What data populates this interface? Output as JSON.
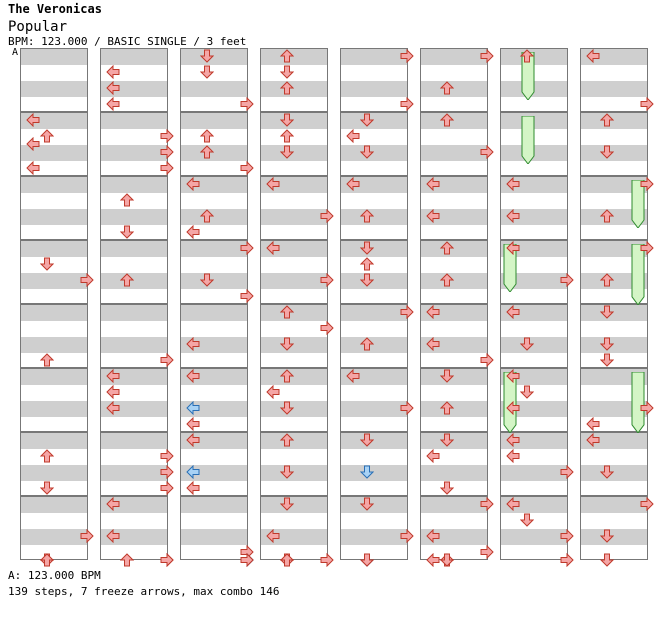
{
  "header": {
    "artist": "The Veronicas",
    "song": "Popular",
    "meta": "BPM: 123.000 / BASIC SINGLE / 3 feet",
    "bpm_marker": "A"
  },
  "footer": {
    "bpm_line": "A: 123.000 BPM",
    "stats_line": "139 steps, 7 freeze arrows, max combo 146"
  },
  "colors": {
    "note_red": "#f5a6a6",
    "note_red_stroke": "#c0392b",
    "note_blue": "#a8d2f5",
    "note_blue_stroke": "#2a6fb5",
    "freeze_fill": "#d4f5c6",
    "freeze_stroke": "#2e8b2e",
    "grid_stripe": "#cfcfcf",
    "grid_border": "#777777",
    "bpm_marker": "#4c9ee0"
  },
  "chart": {
    "columns": 8,
    "measures_per_column": 8,
    "notes": [
      [
        [
          1,
          0.12,
          "L"
        ],
        [
          1,
          0.5,
          "L"
        ],
        [
          1,
          0.88,
          "L"
        ],
        [
          1,
          0.38,
          "U"
        ],
        [
          3,
          0.38,
          "D"
        ],
        [
          3,
          0.62,
          "R"
        ],
        [
          4,
          0.88,
          "U"
        ],
        [
          6,
          0.38,
          "U"
        ],
        [
          6,
          0.88,
          "D"
        ],
        [
          7,
          0.62,
          "R"
        ],
        [
          8,
          0.38,
          "D"
        ],
        [
          8,
          0.88,
          "U"
        ]
      ],
      [
        [
          0,
          0.38,
          "L"
        ],
        [
          0,
          0.62,
          "L"
        ],
        [
          0,
          0.88,
          "L"
        ],
        [
          1,
          0.38,
          "R"
        ],
        [
          1,
          0.62,
          "R"
        ],
        [
          1,
          0.88,
          "R"
        ],
        [
          2,
          0.38,
          "U"
        ],
        [
          2,
          0.88,
          "D"
        ],
        [
          3,
          0.62,
          "U"
        ],
        [
          4,
          0.88,
          "R"
        ],
        [
          5,
          0.12,
          "L"
        ],
        [
          5,
          0.38,
          "L"
        ],
        [
          5,
          0.62,
          "L"
        ],
        [
          6,
          0.38,
          "R"
        ],
        [
          6,
          0.62,
          "R"
        ],
        [
          6,
          0.88,
          "R"
        ],
        [
          7,
          0.12,
          "L"
        ],
        [
          7,
          0.62,
          "L"
        ],
        [
          8,
          0.38,
          "R"
        ],
        [
          8,
          0.62,
          "U"
        ],
        [
          8,
          0.88,
          "R"
        ]
      ],
      [
        [
          0,
          0.12,
          "D"
        ],
        [
          0,
          0.38,
          "D"
        ],
        [
          0,
          0.88,
          "R"
        ],
        [
          1,
          0.38,
          "U"
        ],
        [
          1,
          0.62,
          "U"
        ],
        [
          1,
          0.88,
          "R"
        ],
        [
          2,
          0.12,
          "L"
        ],
        [
          2,
          0.62,
          "U"
        ],
        [
          2,
          0.88,
          "L"
        ],
        [
          3,
          0.12,
          "R"
        ],
        [
          3,
          0.62,
          "D"
        ],
        [
          3,
          0.88,
          "R"
        ],
        [
          4,
          0.62,
          "L"
        ],
        [
          5,
          0.12,
          "L"
        ],
        [
          5,
          0.62,
          "LB"
        ],
        [
          5,
          0.88,
          "L"
        ],
        [
          6,
          0.12,
          "L"
        ],
        [
          6,
          0.62,
          "LB"
        ],
        [
          6,
          0.88,
          "L"
        ],
        [
          7,
          0.88,
          "R"
        ],
        [
          8,
          0.38,
          "RB"
        ],
        [
          8,
          0.12,
          "R"
        ],
        [
          8,
          0.88,
          "RB"
        ],
        [
          8,
          0.88,
          "R"
        ]
      ],
      [
        [
          0,
          0.12,
          "U"
        ],
        [
          0,
          0.38,
          "D"
        ],
        [
          0,
          0.62,
          "U"
        ],
        [
          1,
          0.12,
          "D"
        ],
        [
          1,
          0.38,
          "U"
        ],
        [
          1,
          0.62,
          "D"
        ],
        [
          2,
          0.12,
          "L"
        ],
        [
          2,
          0.62,
          "R"
        ],
        [
          3,
          0.12,
          "L"
        ],
        [
          3,
          0.62,
          "R"
        ],
        [
          4,
          0.12,
          "U"
        ],
        [
          4,
          0.38,
          "R"
        ],
        [
          4,
          0.62,
          "D"
        ],
        [
          5,
          0.12,
          "U"
        ],
        [
          5,
          0.38,
          "L"
        ],
        [
          5,
          0.62,
          "D"
        ],
        [
          6,
          0.12,
          "U"
        ],
        [
          6,
          0.62,
          "D"
        ],
        [
          7,
          0.12,
          "D"
        ],
        [
          7,
          0.62,
          "L"
        ],
        [
          8,
          0.12,
          "D"
        ],
        [
          8,
          0.62,
          "U"
        ],
        [
          8,
          0.88,
          "R"
        ]
      ],
      [
        [
          0,
          0.12,
          "R"
        ],
        [
          0,
          0.88,
          "R"
        ],
        [
          1,
          0.12,
          "D"
        ],
        [
          1,
          0.38,
          "L"
        ],
        [
          1,
          0.62,
          "D"
        ],
        [
          2,
          0.12,
          "L"
        ],
        [
          2,
          0.62,
          "U"
        ],
        [
          3,
          0.12,
          "D"
        ],
        [
          3,
          0.38,
          "U"
        ],
        [
          3,
          0.62,
          "D"
        ],
        [
          4,
          0.12,
          "R"
        ],
        [
          4,
          0.62,
          "U"
        ],
        [
          5,
          0.12,
          "L"
        ],
        [
          5,
          0.62,
          "R"
        ],
        [
          6,
          0.12,
          "D"
        ],
        [
          6,
          0.62,
          "DB"
        ],
        [
          7,
          0.12,
          "D"
        ],
        [
          7,
          0.62,
          "R"
        ],
        [
          8,
          0.12,
          "D"
        ],
        [
          8,
          0.62,
          "DB"
        ],
        [
          8,
          0.88,
          "D"
        ]
      ],
      [
        [
          0,
          0.12,
          "R"
        ],
        [
          0,
          0.62,
          "U"
        ],
        [
          1,
          0.12,
          "U"
        ],
        [
          1,
          0.62,
          "R"
        ],
        [
          2,
          0.12,
          "L"
        ],
        [
          2,
          0.62,
          "L"
        ],
        [
          3,
          0.12,
          "U"
        ],
        [
          3,
          0.62,
          "U"
        ],
        [
          4,
          0.12,
          "L"
        ],
        [
          4,
          0.62,
          "L"
        ],
        [
          4,
          0.88,
          "R"
        ],
        [
          5,
          0.12,
          "D"
        ],
        [
          5,
          0.62,
          "U"
        ],
        [
          6,
          0.12,
          "D"
        ],
        [
          6,
          0.38,
          "L"
        ],
        [
          6,
          0.88,
          "D"
        ],
        [
          7,
          0.12,
          "R"
        ],
        [
          7,
          0.62,
          "L"
        ],
        [
          7,
          0.88,
          "R"
        ],
        [
          8,
          0.38,
          "U"
        ],
        [
          8,
          0.62,
          "D"
        ],
        [
          8,
          0.88,
          "L"
        ]
      ],
      [
        [
          0,
          0.12,
          "U"
        ],
        [
          2,
          0.12,
          "L"
        ],
        [
          2,
          0.62,
          "L"
        ],
        [
          3,
          0.12,
          "L"
        ],
        [
          3,
          0.62,
          "R"
        ],
        [
          4,
          0.12,
          "L"
        ],
        [
          4,
          0.62,
          "D"
        ],
        [
          5,
          0.12,
          "L"
        ],
        [
          5,
          0.38,
          "D"
        ],
        [
          5,
          0.62,
          "L"
        ],
        [
          6,
          0.12,
          "L"
        ],
        [
          6,
          0.38,
          "L"
        ],
        [
          6,
          0.62,
          "R"
        ],
        [
          7,
          0.12,
          "L"
        ],
        [
          7,
          0.38,
          "D"
        ],
        [
          7,
          0.62,
          "R"
        ],
        [
          8,
          0.12,
          "R"
        ]
      ],
      [
        [
          0,
          0.12,
          "L"
        ],
        [
          0,
          0.88,
          "R"
        ],
        [
          1,
          0.12,
          "U"
        ],
        [
          1,
          0.62,
          "D"
        ],
        [
          2,
          0.12,
          "R"
        ],
        [
          2,
          0.62,
          "U"
        ],
        [
          3,
          0.12,
          "R"
        ],
        [
          3,
          0.62,
          "U"
        ],
        [
          4,
          0.12,
          "D"
        ],
        [
          4,
          0.62,
          "D"
        ],
        [
          4,
          0.88,
          "D"
        ],
        [
          5,
          0.62,
          "R"
        ],
        [
          5,
          0.88,
          "L"
        ],
        [
          6,
          0.12,
          "L"
        ],
        [
          6,
          0.62,
          "D"
        ],
        [
          7,
          0.12,
          "R"
        ],
        [
          7,
          0.62,
          "D"
        ],
        [
          8,
          0.12,
          "D"
        ]
      ]
    ],
    "freezes": [
      [
        6,
        0.0,
        0.75
      ],
      [
        6,
        1.0,
        1.75
      ],
      [
        6,
        3.0,
        3.75
      ],
      [
        6,
        5.0,
        5.95
      ],
      [
        7,
        2.0,
        2.75
      ],
      [
        7,
        3.0,
        3.95
      ],
      [
        7,
        5.0,
        5.95
      ]
    ]
  }
}
